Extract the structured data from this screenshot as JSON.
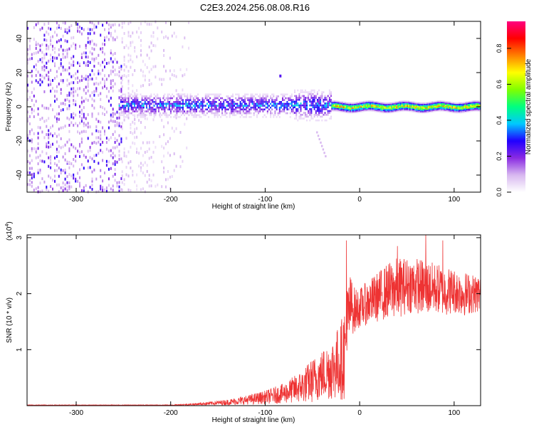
{
  "title": "C2E3.2024.256.08.08.R16",
  "chart_data": [
    {
      "type": "heatmap",
      "xlabel": "Height of straight line (km)",
      "ylabel": "Frequency (Hz)",
      "xlim": [
        -352,
        128
      ],
      "ylim": [
        -50,
        50
      ],
      "x_ticks": [
        -300,
        -200,
        -100,
        0,
        100
      ],
      "x_tick_labels": [
        "-300",
        "-200",
        "-100",
        "0",
        "100"
      ],
      "y_ticks": [
        -40,
        -20,
        0,
        20,
        40
      ],
      "y_tick_labels": [
        "-40",
        "-20",
        "0",
        "20",
        "40"
      ],
      "colorbar": {
        "label": "Normalized spectral amplitude",
        "range": [
          0,
          0.95
        ],
        "ticks": [
          0.0,
          0.2,
          0.4,
          0.6,
          0.8
        ],
        "tick_labels": [
          "0.0",
          "0.2",
          "0.4",
          "0.6",
          "0.8"
        ],
        "colormap": [
          "#ffffff",
          "#d8b8f0",
          "#8a2be2",
          "#2000ff",
          "#00c8ff",
          "#00ff80",
          "#80ff00",
          "#ffff00",
          "#ff8000",
          "#ff0000",
          "#ff0080"
        ]
      },
      "features": [
        {
          "x_range": [
            -352,
            -252
          ],
          "freq_range": [
            -50,
            50
          ],
          "amplitude": 0.18
        },
        {
          "x_range": [
            -252,
            -180
          ],
          "freq_range": [
            -50,
            50
          ],
          "amplitude": 0.05
        },
        {
          "x_range": [
            -255,
            -30
          ],
          "freq_center": 1,
          "freq_halfwidth": 5,
          "amplitude": 0.3
        },
        {
          "x_range": [
            -30,
            128
          ],
          "freq_center": 0,
          "freq_halfwidth": 3,
          "amplitude": 0.8
        }
      ]
    },
    {
      "type": "line",
      "xlabel": "Height of straight line (km)",
      "ylabel": "SNR (10 * v/v)",
      "y_multiplier": "(x10",
      "y_multiplier_exp": "4",
      "y_multiplier_close": ")",
      "xlim": [
        -352,
        128
      ],
      "ylim": [
        0,
        3.05
      ],
      "x_ticks": [
        -300,
        -200,
        -100,
        0,
        100
      ],
      "x_tick_labels": [
        "-300",
        "-200",
        "-100",
        "0",
        "100"
      ],
      "y_ticks": [
        1,
        2,
        3
      ],
      "y_tick_labels": [
        "1",
        "2",
        "3"
      ],
      "color": "#ee3333",
      "series": [
        {
          "x": [
            -352,
            -300,
            -250,
            -200,
            -180,
            -160,
            -140,
            -120,
            -100,
            -80,
            -60,
            -50,
            -40,
            -30,
            -20,
            -15,
            -12,
            -10,
            -5,
            0,
            10,
            20,
            30,
            40,
            50,
            60,
            70,
            80,
            90,
            100,
            110,
            120,
            128
          ],
          "y": [
            0.01,
            0.01,
            0.01,
            0.01,
            0.02,
            0.04,
            0.06,
            0.1,
            0.15,
            0.22,
            0.35,
            0.45,
            0.55,
            0.65,
            0.8,
            1.0,
            1.5,
            1.8,
            1.7,
            1.75,
            1.85,
            1.95,
            2.05,
            2.1,
            2.15,
            2.15,
            2.1,
            2.1,
            2.05,
            2.05,
            2.0,
            2.0,
            2.0
          ],
          "noise_amplitude": [
            0.005,
            0.005,
            0.005,
            0.006,
            0.015,
            0.03,
            0.05,
            0.08,
            0.12,
            0.18,
            0.3,
            0.4,
            0.45,
            0.55,
            0.7,
            0.9,
            0.9,
            0.55,
            0.4,
            0.35,
            0.4,
            0.45,
            0.5,
            0.55,
            0.5,
            0.5,
            0.5,
            0.45,
            0.45,
            0.4,
            0.4,
            0.35,
            0.35
          ],
          "peaks": [
            {
              "x": -14,
              "y": 2.95
            },
            {
              "x": 70,
              "y": 3.05
            },
            {
              "x": 88,
              "y": 2.95
            },
            {
              "x": 40,
              "y": 2.85
            }
          ]
        }
      ]
    }
  ]
}
